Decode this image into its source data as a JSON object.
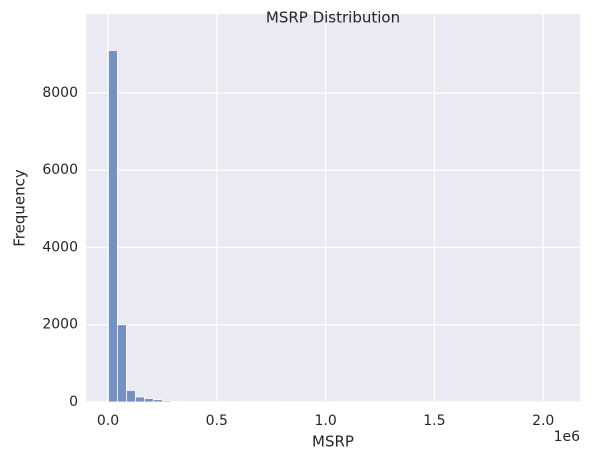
{
  "chart_data": {
    "type": "histogram",
    "title": "MSRP Distribution",
    "xlabel": "MSRP",
    "ylabel": "Frequency",
    "bins": [
      2000,
      43278,
      84556,
      125834,
      167112,
      208390,
      249668,
      290946,
      332224,
      373502,
      414780,
      456058,
      497336,
      538614,
      579892,
      621170,
      662448,
      703726,
      745004,
      786282,
      827560,
      868838,
      910116,
      951394,
      992672,
      1033950,
      1075228,
      1116506,
      1157784,
      1199062,
      1240340,
      1281618,
      1322896,
      1364174,
      1405452,
      1446730,
      1488008,
      1529286,
      1570564,
      1611842,
      1653120,
      1694398,
      1735676,
      1776954,
      1818232,
      1859510,
      1900788,
      1942066,
      1983344,
      2024622,
      2065900
    ],
    "values": [
      9100,
      2000,
      300,
      130,
      90,
      60,
      30,
      20,
      15,
      10,
      8,
      6,
      5,
      4,
      3,
      3,
      2,
      2,
      2,
      1,
      1,
      1,
      1,
      1,
      1,
      0,
      0,
      0,
      0,
      0,
      0,
      0,
      0,
      0,
      0,
      0,
      0,
      0,
      0,
      0,
      0,
      0,
      0,
      0,
      0,
      0,
      0,
      0,
      0,
      1
    ],
    "color": "#7591c3",
    "xlim": [
      -101195,
      2169097
    ],
    "xticks": [
      {
        "value": 0,
        "label": "0.0"
      },
      {
        "value": 500000,
        "label": "0.5"
      },
      {
        "value": 1000000,
        "label": "1.0"
      },
      {
        "value": 1500000,
        "label": "1.5"
      },
      {
        "value": 2000000,
        "label": "2.0"
      }
    ],
    "x_offset_label": "1e6",
    "ylim": [
      0,
      10045
    ],
    "yticks": [
      0,
      2000,
      4000,
      6000,
      8000
    ],
    "grid": true
  }
}
